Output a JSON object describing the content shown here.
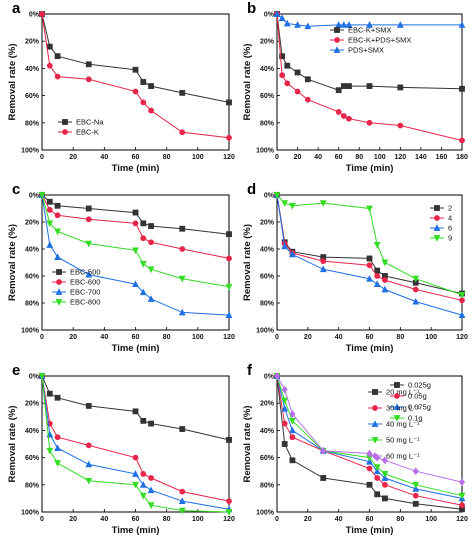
{
  "colors": {
    "black": "#333333",
    "red": "#e8254a",
    "blue": "#1f6fe5",
    "green": "#33dd22",
    "purple": "#b86fe8"
  },
  "chart_data": [
    {
      "panel": "a",
      "type": "line",
      "xlabel": "Time (min)",
      "ylabel": "Removal rate (%)",
      "xlim": [
        0,
        120
      ],
      "ylim": [
        0,
        100
      ],
      "xticks": [
        "0",
        "20",
        "40",
        "60",
        "80",
        "100",
        "120"
      ],
      "yticks": [
        "0%",
        "20%",
        "40%",
        "60%",
        "80%",
        "100%"
      ],
      "legend_position": "bottom-left",
      "series": [
        {
          "name": "EBC-Na",
          "color": "black",
          "marker": "square",
          "x": [
            0,
            5,
            10,
            30,
            60,
            65,
            70,
            90,
            120
          ],
          "y": [
            0,
            24,
            31,
            37,
            41,
            50,
            53,
            58,
            65
          ]
        },
        {
          "name": "EBC-K",
          "color": "red",
          "marker": "circle",
          "x": [
            0,
            5,
            10,
            30,
            60,
            65,
            70,
            90,
            120
          ],
          "y": [
            0,
            38,
            46,
            48,
            57,
            65,
            71,
            87,
            91
          ]
        }
      ]
    },
    {
      "panel": "b",
      "type": "line",
      "xlabel": "Time (min)",
      "ylabel": "Removal rate (%)",
      "xlim": [
        0,
        180
      ],
      "ylim": [
        0,
        100
      ],
      "xticks": [
        "0",
        "20",
        "40",
        "60",
        "80",
        "100",
        "120",
        "140",
        "160",
        "180"
      ],
      "yticks": [
        "0%",
        "20%",
        "40%",
        "60%",
        "80%",
        "100%"
      ],
      "legend_position": "top-right",
      "series": [
        {
          "name": "EBC-K+SMX",
          "color": "black",
          "marker": "square",
          "x": [
            0,
            5,
            10,
            20,
            30,
            60,
            65,
            70,
            90,
            120,
            180
          ],
          "y": [
            0,
            31,
            38,
            43,
            48,
            56,
            53,
            53,
            53,
            54,
            55
          ]
        },
        {
          "name": "EBC-K+PDS+SMX",
          "color": "red",
          "marker": "circle",
          "x": [
            0,
            5,
            10,
            20,
            30,
            60,
            65,
            70,
            90,
            120,
            180
          ],
          "y": [
            0,
            45,
            51,
            57,
            63,
            72,
            75,
            77,
            80,
            82,
            93
          ]
        },
        {
          "name": "PDS+SMX",
          "color": "blue",
          "marker": "triangle",
          "x": [
            0,
            5,
            10,
            20,
            30,
            60,
            65,
            70,
            90,
            120,
            180
          ],
          "y": [
            0,
            3,
            7,
            8,
            9,
            8,
            8,
            8,
            8,
            8,
            8
          ]
        }
      ]
    },
    {
      "panel": "c",
      "type": "line",
      "xlabel": "Time (min)",
      "ylabel": "Removal rate (%)",
      "xlim": [
        0,
        120
      ],
      "ylim": [
        0,
        100
      ],
      "xticks": [
        "0",
        "20",
        "40",
        "60",
        "80",
        "100",
        "120"
      ],
      "yticks": [
        "0%",
        "20%",
        "40%",
        "60%",
        "80%",
        "100%"
      ],
      "legend_position": "bottom-left",
      "series": [
        {
          "name": "EBC-500",
          "color": "black",
          "marker": "square",
          "x": [
            0,
            5,
            10,
            30,
            60,
            65,
            70,
            90,
            120
          ],
          "y": [
            0,
            5,
            8,
            10,
            13,
            21,
            23,
            25,
            29
          ]
        },
        {
          "name": "EBC-600",
          "color": "red",
          "marker": "circle",
          "x": [
            0,
            5,
            10,
            30,
            60,
            65,
            70,
            90,
            120
          ],
          "y": [
            0,
            11,
            15,
            18,
            21,
            32,
            35,
            40,
            47
          ]
        },
        {
          "name": "EBC-700",
          "color": "blue",
          "marker": "triangle",
          "x": [
            0,
            5,
            10,
            30,
            60,
            65,
            70,
            90,
            120
          ],
          "y": [
            0,
            37,
            46,
            59,
            66,
            72,
            77,
            87,
            89
          ]
        },
        {
          "name": "EBC-800",
          "color": "green",
          "marker": "inverted-triangle",
          "x": [
            0,
            5,
            10,
            30,
            60,
            65,
            70,
            90,
            120
          ],
          "y": [
            0,
            21,
            27,
            36,
            41,
            51,
            55,
            62,
            68
          ]
        }
      ]
    },
    {
      "panel": "d",
      "type": "line",
      "xlabel": "Time (min)",
      "ylabel": "Removal rate (%)",
      "xlim": [
        0,
        120
      ],
      "ylim": [
        0,
        100
      ],
      "xticks": [
        "0",
        "20",
        "40",
        "60",
        "80",
        "100",
        "120"
      ],
      "yticks": [
        "0%",
        "20%",
        "40%",
        "60%",
        "80%",
        "100%"
      ],
      "legend_position": "top-right",
      "series": [
        {
          "name": "2",
          "color": "black",
          "marker": "square",
          "x": [
            0,
            5,
            10,
            30,
            60,
            65,
            70,
            90,
            120
          ],
          "y": [
            0,
            35,
            42,
            46,
            47,
            56,
            60,
            65,
            73
          ]
        },
        {
          "name": "4",
          "color": "red",
          "marker": "circle",
          "x": [
            0,
            5,
            10,
            30,
            60,
            65,
            70,
            90,
            120
          ],
          "y": [
            0,
            36,
            43,
            49,
            52,
            60,
            63,
            70,
            78
          ]
        },
        {
          "name": "6",
          "color": "blue",
          "marker": "triangle",
          "x": [
            0,
            5,
            10,
            30,
            60,
            65,
            70,
            90,
            120
          ],
          "y": [
            0,
            38,
            44,
            55,
            62,
            66,
            70,
            79,
            89
          ]
        },
        {
          "name": "9",
          "color": "green",
          "marker": "inverted-triangle",
          "x": [
            0,
            5,
            10,
            30,
            60,
            65,
            70,
            90,
            120
          ],
          "y": [
            0,
            6,
            8,
            6,
            10,
            37,
            50,
            62,
            74
          ]
        }
      ]
    },
    {
      "panel": "e",
      "type": "line",
      "xlabel": "Time (min)",
      "ylabel": "Removal rate (%)",
      "xlim": [
        0,
        120
      ],
      "ylim": [
        0,
        100
      ],
      "xticks": [
        "0",
        "20",
        "40",
        "60",
        "80",
        "100",
        "120"
      ],
      "yticks": [
        "0%",
        "20%",
        "40%",
        "60%",
        "80%",
        "100%"
      ],
      "legend_position": "top-right",
      "series": [
        {
          "name": "0.025g",
          "color": "black",
          "marker": "square",
          "x": [
            0,
            5,
            10,
            30,
            60,
            65,
            70,
            90,
            120
          ],
          "y": [
            0,
            13,
            16,
            22,
            26,
            33,
            35,
            39,
            47
          ]
        },
        {
          "name": "0.05g",
          "color": "red",
          "marker": "circle",
          "x": [
            0,
            5,
            10,
            30,
            60,
            65,
            70,
            90,
            120
          ],
          "y": [
            0,
            35,
            45,
            51,
            60,
            72,
            75,
            85,
            92
          ]
        },
        {
          "name": "0.075g",
          "color": "blue",
          "marker": "triangle",
          "x": [
            0,
            5,
            10,
            30,
            60,
            65,
            70,
            90,
            120
          ],
          "y": [
            0,
            43,
            53,
            65,
            72,
            80,
            84,
            92,
            98
          ]
        },
        {
          "name": "0.1g",
          "color": "green",
          "marker": "inverted-triangle",
          "x": [
            0,
            5,
            10,
            30,
            60,
            65,
            70,
            90,
            120
          ],
          "y": [
            0,
            55,
            64,
            77,
            80,
            88,
            95,
            99,
            100
          ]
        }
      ]
    },
    {
      "panel": "f",
      "type": "line",
      "xlabel": "Time (min)",
      "ylabel": "Removal rate (%)",
      "xlim": [
        0,
        120
      ],
      "ylim": [
        0,
        100
      ],
      "xticks": [
        "0",
        "20",
        "40",
        "60",
        "80",
        "100",
        "120"
      ],
      "yticks": [
        "0%",
        "20%",
        "40%",
        "60%",
        "80%",
        "100%"
      ],
      "legend_position": "top-right",
      "series": [
        {
          "name": "20 mg L⁻¹",
          "color": "black",
          "marker": "square",
          "x": [
            0,
            5,
            10,
            30,
            60,
            65,
            70,
            90,
            120
          ],
          "y": [
            0,
            50,
            62,
            75,
            80,
            87,
            90,
            94,
            98
          ]
        },
        {
          "name": "30 mg L⁻¹",
          "color": "red",
          "marker": "circle",
          "x": [
            0,
            5,
            10,
            30,
            60,
            65,
            70,
            90,
            120
          ],
          "y": [
            0,
            35,
            45,
            55,
            68,
            75,
            80,
            88,
            95
          ]
        },
        {
          "name": "40 mg L⁻¹",
          "color": "blue",
          "marker": "triangle",
          "x": [
            0,
            5,
            10,
            30,
            60,
            65,
            70,
            90,
            120
          ],
          "y": [
            0,
            24,
            40,
            55,
            63,
            70,
            75,
            83,
            90
          ]
        },
        {
          "name": "50 mg L⁻¹",
          "color": "green",
          "marker": "inverted-triangle",
          "x": [
            0,
            5,
            10,
            30,
            60,
            65,
            70,
            90,
            120
          ],
          "y": [
            0,
            18,
            33,
            55,
            60,
            67,
            72,
            80,
            88
          ]
        },
        {
          "name": "60 mg L⁻¹",
          "color": "purple",
          "marker": "diamond",
          "x": [
            0,
            5,
            10,
            30,
            60,
            65,
            70,
            90,
            120
          ],
          "y": [
            0,
            10,
            28,
            55,
            57,
            60,
            62,
            70,
            78
          ]
        }
      ]
    }
  ]
}
